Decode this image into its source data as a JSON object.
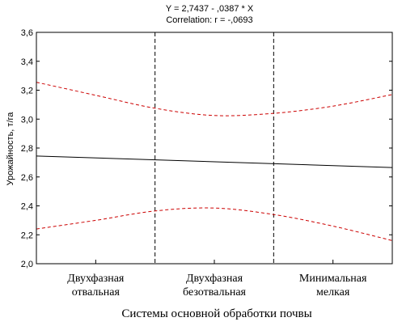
{
  "chart_data": {
    "type": "line",
    "title_lines": [
      "Y = 2,7437 - ,0387  * X",
      "Correlation: r = -,0693"
    ],
    "xlabel": "Системы основной обработки почвы",
    "ylabel": "Урожайность, т/га",
    "ylim": [
      2.0,
      3.6
    ],
    "xlim": [
      0.5,
      3.5
    ],
    "yticks": [
      "2,0",
      "2,2",
      "2,4",
      "2,6",
      "2,8",
      "3,0",
      "3,2",
      "3,4",
      "3,6"
    ],
    "categories": [
      {
        "lines": [
          "Двухфазная",
          "отвальная"
        ],
        "x": 1
      },
      {
        "lines": [
          "Двухфазная",
          "безотвальная"
        ],
        "x": 2
      },
      {
        "lines": [
          "Минимальная",
          "мелкая"
        ],
        "x": 3
      }
    ],
    "category_boundaries": [
      1.5,
      2.5
    ],
    "series": [
      {
        "type": "regression",
        "style": "solid",
        "color": "#000000",
        "x": [
          0.5,
          1.0,
          1.5,
          2.0,
          2.5,
          3.0,
          3.5
        ],
        "y": [
          2.724,
          2.705,
          2.686,
          2.666,
          2.647,
          2.628,
          2.608
        ],
        "y_shown_at_axis_edges": [
          2.745,
          2.665
        ]
      },
      {
        "type": "confidence-upper",
        "style": "dashed",
        "color": "#cc0000",
        "x": [
          0.5,
          1.0,
          1.5,
          2.0,
          2.5,
          3.0,
          3.5
        ],
        "y": [
          3.255,
          3.165,
          3.075,
          3.025,
          3.04,
          3.09,
          3.17
        ]
      },
      {
        "type": "confidence-lower",
        "style": "dashed",
        "color": "#cc0000",
        "x": [
          0.5,
          1.0,
          1.5,
          2.0,
          2.5,
          3.0,
          3.5
        ],
        "y": [
          2.24,
          2.3,
          2.365,
          2.385,
          2.34,
          2.26,
          2.16
        ]
      }
    ],
    "grid": false,
    "legend": "none"
  }
}
